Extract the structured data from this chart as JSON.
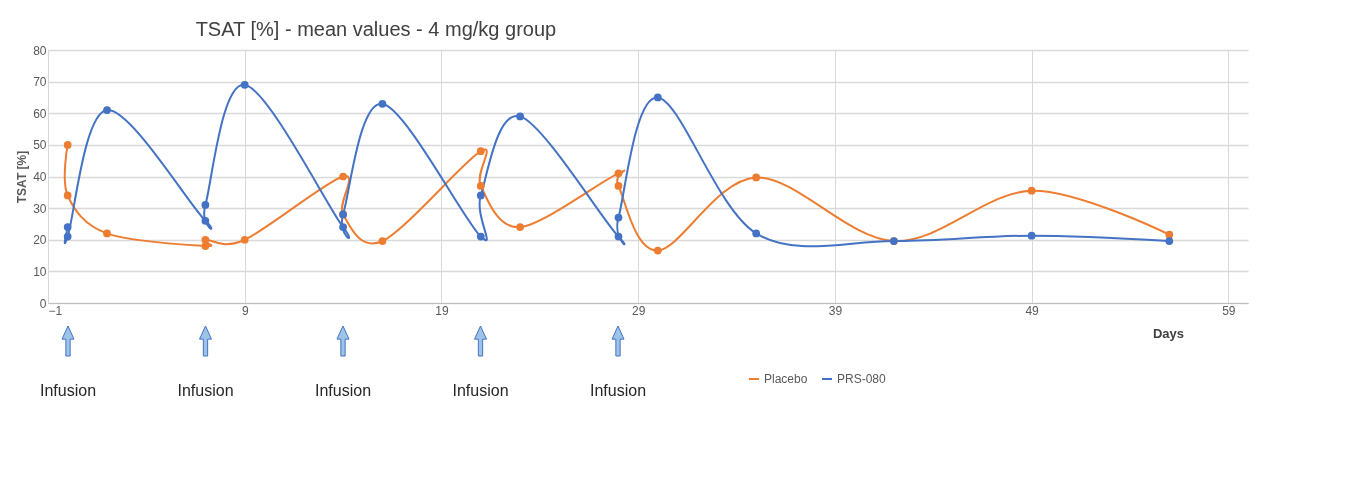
{
  "chart_data": {
    "type": "line",
    "title": "TSAT [%] - mean values - 4 mg/kg group",
    "xlabel": "Days",
    "ylabel": "TSAT [%]",
    "xlim": [
      -1,
      60
    ],
    "xticks": [
      -1,
      9,
      19,
      29,
      39,
      49,
      59
    ],
    "ylim": [
      0,
      80
    ],
    "yticks": [
      0,
      10,
      20,
      30,
      40,
      50,
      60,
      70,
      80
    ],
    "grid": true,
    "legend": "bottom",
    "marker": "circle",
    "line_style": "solid",
    "series": [
      {
        "name": "Placebo",
        "color": "#ed7d31",
        "x": [
          0,
          0,
          2,
          7,
          7,
          9,
          14,
          14,
          16,
          21,
          21,
          23,
          28,
          28,
          30,
          35,
          42,
          49,
          56
        ],
        "values": [
          50,
          34,
          22,
          18,
          20,
          20,
          40,
          28,
          19.6,
          48,
          37,
          24,
          41,
          37,
          16.6,
          39.7,
          19.6,
          35.5,
          21.6
        ]
      },
      {
        "name": "PRS-080",
        "color": "#4472c4",
        "x": [
          0,
          0,
          2,
          7,
          7,
          9,
          14,
          14,
          16,
          21,
          21,
          23,
          28,
          28,
          30,
          35,
          42,
          49,
          56
        ],
        "values": [
          24,
          21,
          61,
          26,
          31,
          69,
          24,
          28,
          63,
          21,
          34,
          59,
          21,
          27,
          65,
          22,
          19.6,
          21.3,
          19.6
        ]
      }
    ],
    "annotations": [
      "Infusion",
      "Infusion",
      "Infusion",
      "Infusion",
      "Infusion"
    ]
  }
}
